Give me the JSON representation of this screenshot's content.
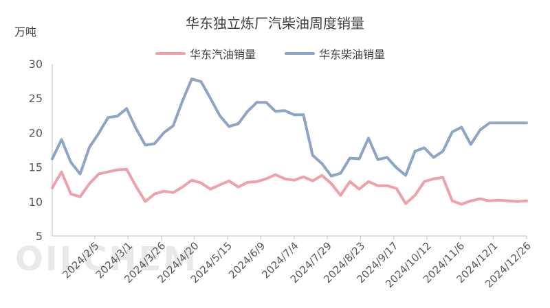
{
  "chart_data": {
    "type": "line",
    "title": "华东独立炼厂汽柴油周度销量",
    "unit_label": "万吨",
    "ylim": [
      5,
      30
    ],
    "yticks": [
      5,
      10,
      15,
      20,
      25,
      30
    ],
    "grid": false,
    "legend_position": "top",
    "xtick_labels": [
      "2024/2/5",
      "2024/3/1",
      "2024/3/26",
      "2024/4/20",
      "2024/5/15",
      "2024/6/9",
      "2024/7/4",
      "2024/7/29",
      "2024/8/23",
      "2024/9/17",
      "2024/10/12",
      "2024/11/6",
      "2024/12/1",
      "2024/12/26"
    ],
    "x": [
      "2024/1/4",
      "2024/1/11",
      "2024/1/18",
      "2024/1/25",
      "2024/2/1",
      "2024/2/8",
      "2024/2/15",
      "2024/2/22",
      "2024/2/29",
      "2024/3/7",
      "2024/3/14",
      "2024/3/21",
      "2024/3/28",
      "2024/4/4",
      "2024/4/11",
      "2024/4/18",
      "2024/4/25",
      "2024/5/2",
      "2024/5/9",
      "2024/5/16",
      "2024/5/23",
      "2024/5/30",
      "2024/6/6",
      "2024/6/13",
      "2024/6/20",
      "2024/6/27",
      "2024/7/4",
      "2024/7/11",
      "2024/7/18",
      "2024/7/25",
      "2024/8/1",
      "2024/8/8",
      "2024/8/15",
      "2024/8/22",
      "2024/8/29",
      "2024/9/5",
      "2024/9/12",
      "2024/9/19",
      "2024/9/26",
      "2024/10/3",
      "2024/10/10",
      "2024/10/17",
      "2024/10/24",
      "2024/10/31",
      "2024/11/7",
      "2024/11/14",
      "2024/11/21",
      "2024/11/28",
      "2024/12/5",
      "2024/12/12",
      "2024/12/19",
      "2024/12/26"
    ],
    "series": [
      {
        "name": "华东汽油销量",
        "color": "#f0a0a8",
        "values": [
          12.0,
          14.3,
          11.1,
          10.7,
          12.6,
          14.0,
          14.3,
          14.6,
          14.7,
          12.2,
          10.0,
          11.1,
          11.5,
          11.3,
          12.1,
          13.1,
          12.7,
          11.8,
          12.4,
          13.0,
          12.1,
          12.8,
          12.9,
          13.3,
          13.9,
          13.3,
          13.1,
          13.6,
          13.0,
          13.8,
          12.6,
          10.9,
          12.9,
          11.8,
          12.9,
          12.3,
          12.3,
          11.9,
          9.7,
          10.9,
          12.9,
          13.3,
          13.5,
          10.1,
          9.6,
          10.1,
          10.4,
          10.1,
          10.2,
          10.1,
          10.0,
          10.1
        ]
      },
      {
        "name": "华东柴油销量",
        "color": "#8da4c7",
        "values": [
          16.2,
          19.0,
          15.7,
          14.0,
          17.9,
          19.9,
          22.2,
          22.4,
          23.5,
          20.6,
          18.2,
          18.4,
          20.0,
          21.0,
          24.6,
          27.8,
          27.4,
          25.0,
          22.5,
          20.9,
          21.3,
          23.1,
          24.4,
          24.4,
          23.1,
          23.2,
          22.6,
          22.6,
          16.7,
          15.5,
          13.7,
          14.1,
          16.3,
          16.2,
          19.2,
          16.1,
          16.4,
          14.9,
          13.8,
          17.3,
          17.8,
          16.4,
          17.3,
          20.1,
          20.8,
          18.3,
          20.4,
          21.4,
          21.4,
          21.4,
          21.4,
          21.4
        ]
      }
    ]
  },
  "watermark": "OILCHEM"
}
